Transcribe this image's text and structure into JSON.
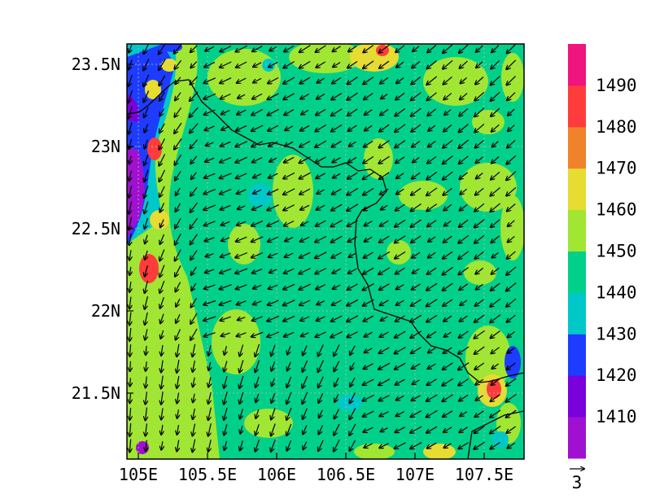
{
  "map": {
    "x_ticks": [
      "105E",
      "105.5E",
      "106E",
      "106.5E",
      "107E",
      "107.5E"
    ],
    "y_ticks": [
      "23.5N",
      "23N",
      "22.5N",
      "22N",
      "21.5N"
    ],
    "lon_range": [
      104.95,
      107.8
    ],
    "lat_range": [
      21.1,
      23.65
    ],
    "background_level": 1440,
    "shaded_field": "contours of values 1400-1500, mostly 1440-1450 with scattered higher patches",
    "wind_vectors": "mainly from the northeast/east, pointing south-west to west"
  },
  "colorbar": {
    "labels": [
      "1410",
      "1420",
      "1430",
      "1440",
      "1450",
      "1460",
      "1470",
      "1480",
      "1490"
    ],
    "colors": [
      "#a010d0",
      "#7a00dc",
      "#1e3cff",
      "#00c8c8",
      "#00d08a",
      "#a0e632",
      "#e6dc32",
      "#f0822a",
      "#ff3c3c",
      "#f0147f"
    ]
  },
  "vector_reference": {
    "label": "3"
  }
}
